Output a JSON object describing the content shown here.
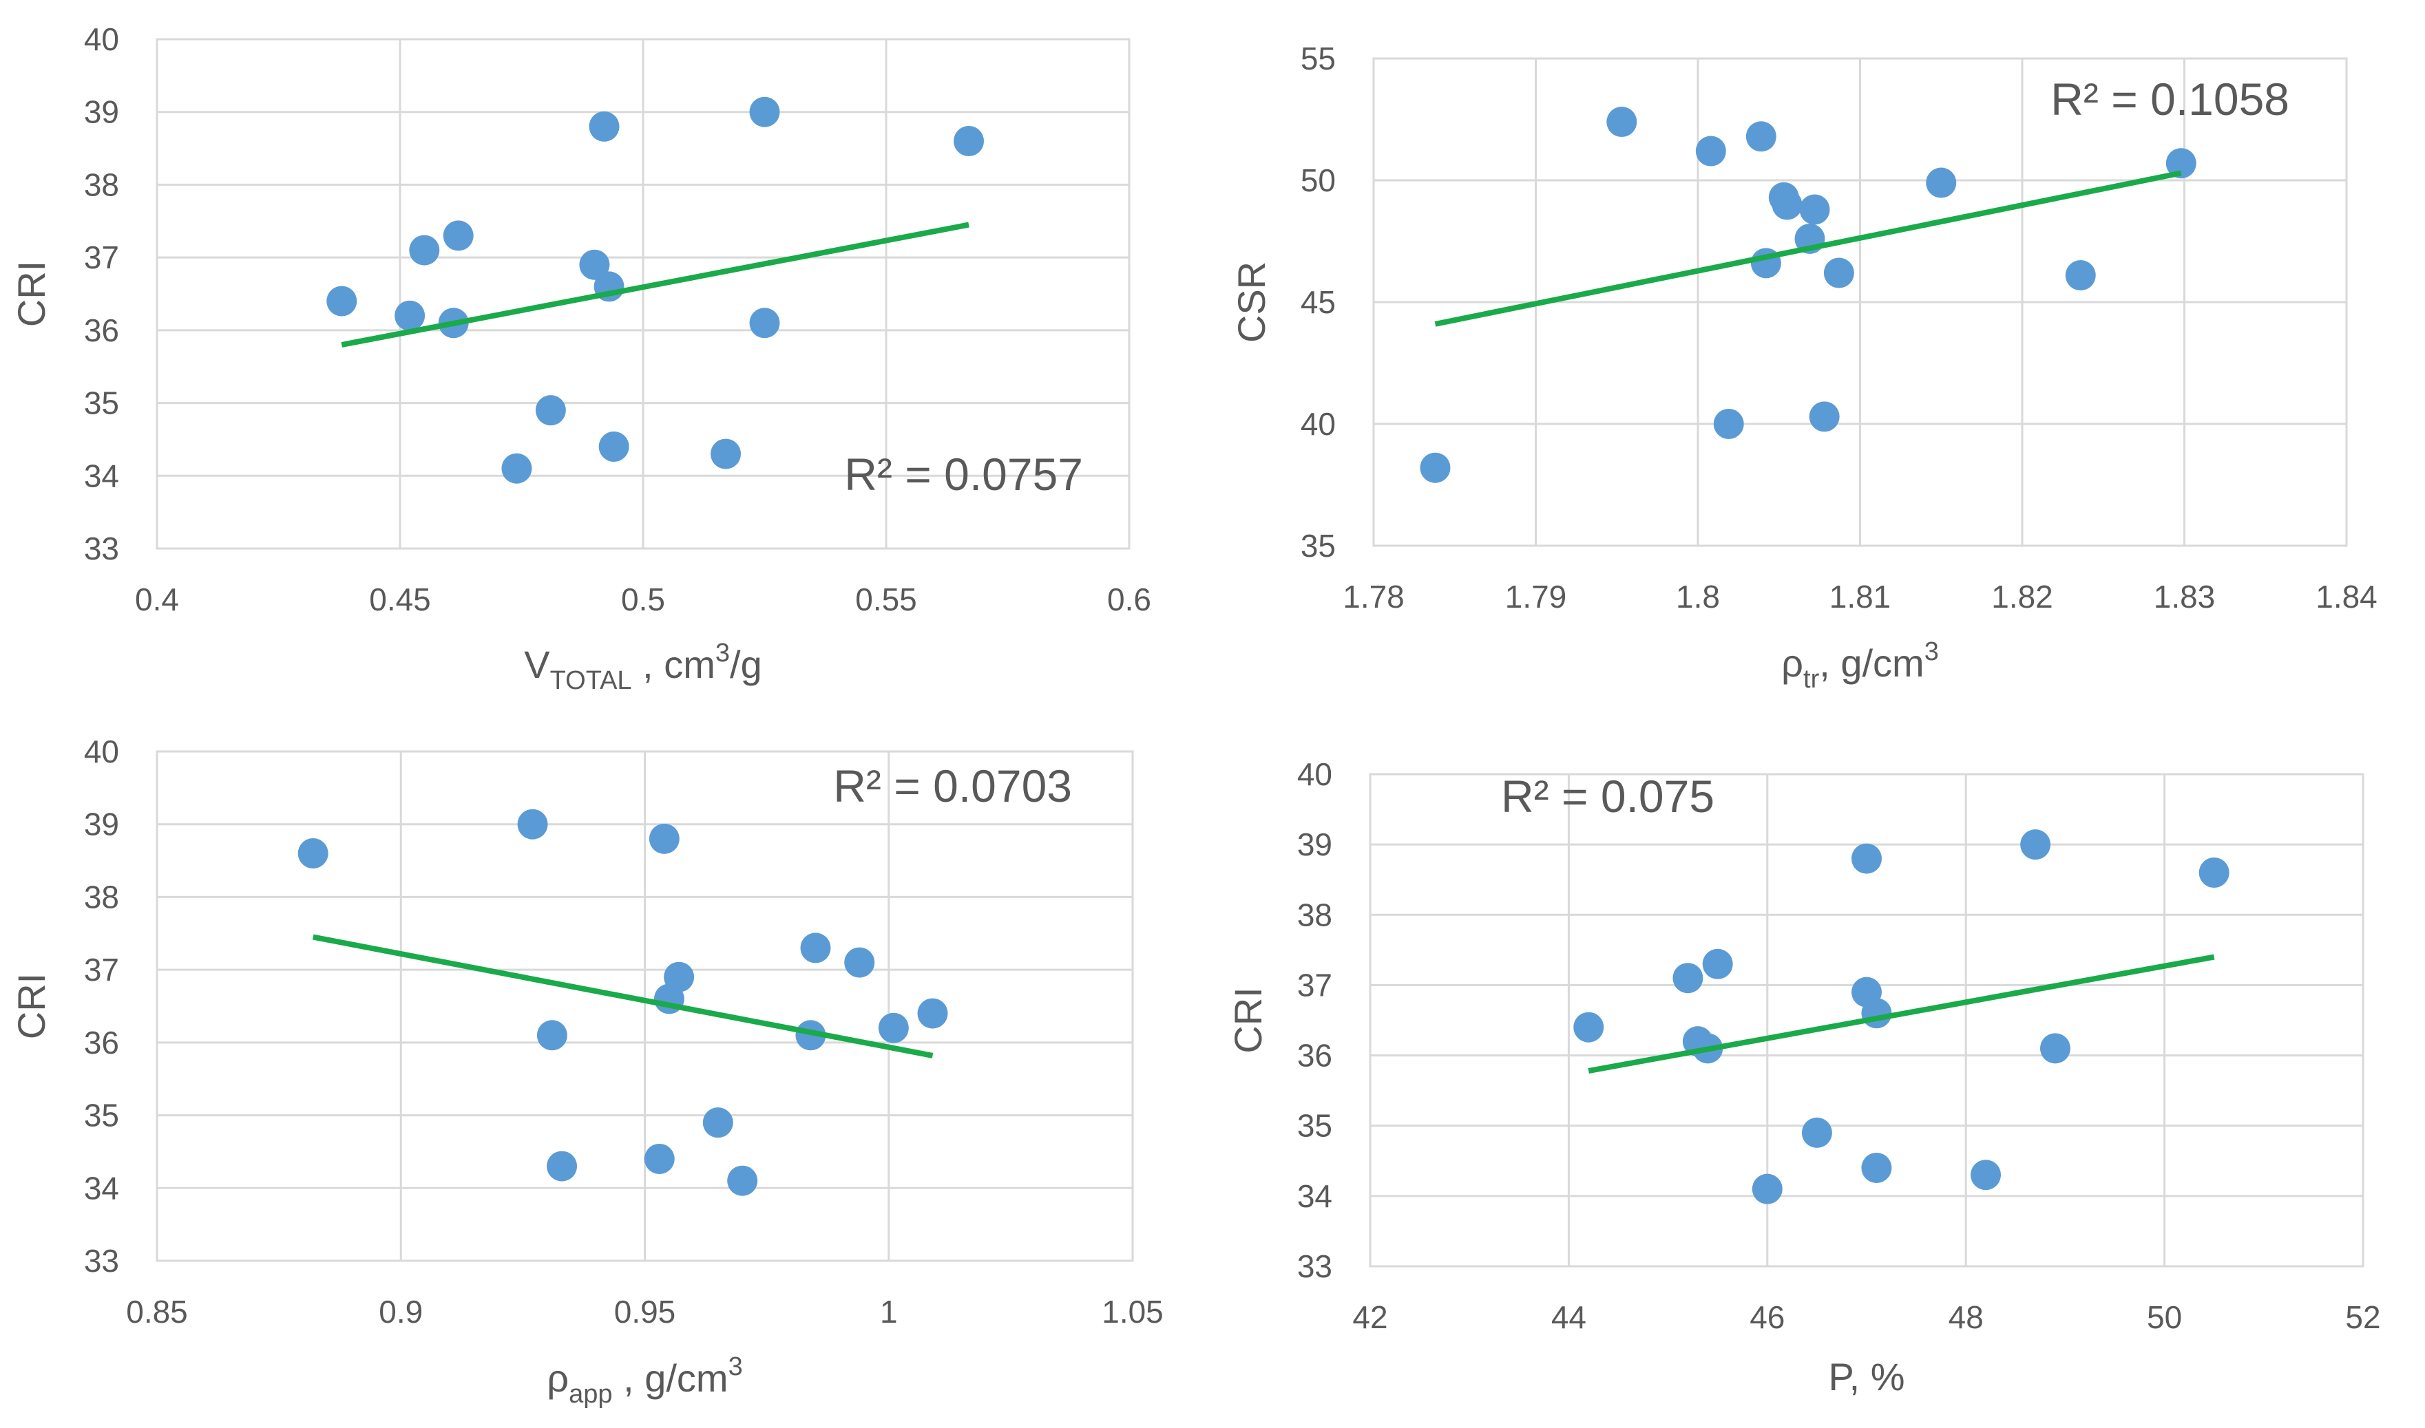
{
  "colors": {
    "point": "#5b9bd5",
    "trendline": "#1aaa4a",
    "grid": "#d9d9d9",
    "text": "#595959"
  },
  "chart_data": [
    {
      "id": "a",
      "type": "scatter",
      "title": "",
      "xlabel": {
        "main": "V",
        "sub": "TOTAL",
        "rest": " , cm",
        "sup": "3",
        "tail": "/g"
      },
      "ylabel": "CRI",
      "xlim": [
        0.4,
        0.6
      ],
      "ylim": [
        33,
        40
      ],
      "xticks": [
        0.4,
        0.45,
        0.5,
        0.55,
        0.6
      ],
      "xtick_labels": [
        "0.4",
        "0.45",
        "0.5",
        "0.55",
        "0.6"
      ],
      "yticks": [
        33,
        34,
        35,
        36,
        37,
        38,
        39,
        40
      ],
      "ytick_labels": [
        "33",
        "34",
        "35",
        "36",
        "37",
        "38",
        "39",
        "40"
      ],
      "grid": true,
      "r2_label": "R² = 0.0757",
      "r2_position": "bottom-right",
      "points": [
        {
          "x": 0.438,
          "y": 36.4
        },
        {
          "x": 0.452,
          "y": 36.2
        },
        {
          "x": 0.455,
          "y": 37.1
        },
        {
          "x": 0.461,
          "y": 36.1
        },
        {
          "x": 0.462,
          "y": 37.3
        },
        {
          "x": 0.474,
          "y": 34.1
        },
        {
          "x": 0.481,
          "y": 34.9
        },
        {
          "x": 0.49,
          "y": 36.9
        },
        {
          "x": 0.492,
          "y": 38.8
        },
        {
          "x": 0.493,
          "y": 36.6
        },
        {
          "x": 0.494,
          "y": 34.4
        },
        {
          "x": 0.517,
          "y": 34.3
        },
        {
          "x": 0.525,
          "y": 36.1
        },
        {
          "x": 0.525,
          "y": 39.0
        },
        {
          "x": 0.567,
          "y": 38.6
        }
      ],
      "trendline": {
        "x0": 0.438,
        "y0": 35.8,
        "x1": 0.567,
        "y1": 37.45
      }
    },
    {
      "id": "b",
      "type": "scatter",
      "title": "",
      "xlabel": {
        "main": "ρ",
        "sub": "tr",
        "rest": ", g/cm",
        "sup": "3",
        "tail": ""
      },
      "ylabel": "CSR",
      "xlim": [
        1.78,
        1.84
      ],
      "ylim": [
        35,
        55
      ],
      "xticks": [
        1.78,
        1.79,
        1.8,
        1.81,
        1.82,
        1.83,
        1.84
      ],
      "xtick_labels": [
        "1.78",
        "1.79",
        "1.8",
        "1.81",
        "1.82",
        "1.83",
        "1.84"
      ],
      "yticks": [
        35,
        40,
        45,
        50,
        55
      ],
      "ytick_labels": [
        "35",
        "40",
        "45",
        "50",
        "55"
      ],
      "grid": true,
      "r2_label": "R² = 0.1058",
      "r2_position": "top-right",
      "points": [
        {
          "x": 1.7838,
          "y": 38.2
        },
        {
          "x": 1.7953,
          "y": 52.4
        },
        {
          "x": 1.8008,
          "y": 51.2
        },
        {
          "x": 1.8019,
          "y": 40.0
        },
        {
          "x": 1.8039,
          "y": 51.8
        },
        {
          "x": 1.8042,
          "y": 46.6
        },
        {
          "x": 1.8053,
          "y": 49.3
        },
        {
          "x": 1.8055,
          "y": 49.0
        },
        {
          "x": 1.8069,
          "y": 47.6
        },
        {
          "x": 1.8072,
          "y": 48.8
        },
        {
          "x": 1.8078,
          "y": 40.3
        },
        {
          "x": 1.8087,
          "y": 46.2
        },
        {
          "x": 1.815,
          "y": 49.9
        },
        {
          "x": 1.8236,
          "y": 46.1
        },
        {
          "x": 1.8298,
          "y": 50.7
        }
      ],
      "trendline": {
        "x0": 1.7838,
        "y0": 44.1,
        "x1": 1.8298,
        "y1": 50.3
      }
    },
    {
      "id": "c",
      "type": "scatter",
      "title": "",
      "xlabel": {
        "main": "ρ",
        "sub": "app",
        "rest": " , g/cm",
        "sup": "3",
        "tail": ""
      },
      "ylabel": "CRI",
      "xlim": [
        0.85,
        1.05
      ],
      "ylim": [
        33,
        40
      ],
      "xticks": [
        0.85,
        0.9,
        0.95,
        1.0,
        1.05
      ],
      "xtick_labels": [
        "0.85",
        "0.9",
        "0.95",
        "1",
        "1.05"
      ],
      "yticks": [
        33,
        34,
        35,
        36,
        37,
        38,
        39,
        40
      ],
      "ytick_labels": [
        "33",
        "34",
        "35",
        "36",
        "37",
        "38",
        "39",
        "40"
      ],
      "grid": true,
      "r2_label": "R² = 0.0703",
      "r2_position": "top-right",
      "points": [
        {
          "x": 0.882,
          "y": 38.6
        },
        {
          "x": 0.927,
          "y": 39.0
        },
        {
          "x": 0.931,
          "y": 36.1
        },
        {
          "x": 0.933,
          "y": 34.3
        },
        {
          "x": 0.953,
          "y": 34.4
        },
        {
          "x": 0.954,
          "y": 38.8
        },
        {
          "x": 0.955,
          "y": 36.6
        },
        {
          "x": 0.957,
          "y": 36.9
        },
        {
          "x": 0.965,
          "y": 34.9
        },
        {
          "x": 0.97,
          "y": 34.1
        },
        {
          "x": 0.984,
          "y": 36.1
        },
        {
          "x": 0.985,
          "y": 37.3
        },
        {
          "x": 0.994,
          "y": 37.1
        },
        {
          "x": 1.001,
          "y": 36.2
        },
        {
          "x": 1.009,
          "y": 36.4
        }
      ],
      "trendline": {
        "x0": 0.882,
        "y0": 37.45,
        "x1": 1.009,
        "y1": 35.82
      }
    },
    {
      "id": "d",
      "type": "scatter",
      "title": "",
      "xlabel": {
        "main": "P, %",
        "sub": "",
        "rest": "",
        "sup": "",
        "tail": ""
      },
      "ylabel": "CRI",
      "xlim": [
        42,
        52
      ],
      "ylim": [
        33,
        40
      ],
      "xticks": [
        42,
        44,
        46,
        48,
        50,
        52
      ],
      "xtick_labels": [
        "42",
        "44",
        "46",
        "48",
        "50",
        "52"
      ],
      "yticks": [
        33,
        34,
        35,
        36,
        37,
        38,
        39,
        40
      ],
      "ytick_labels": [
        "33",
        "34",
        "35",
        "36",
        "37",
        "38",
        "39",
        "40"
      ],
      "grid": true,
      "r2_label": "R² = 0.075",
      "r2_position": "top-left",
      "points": [
        {
          "x": 44.2,
          "y": 36.4
        },
        {
          "x": 45.2,
          "y": 37.1
        },
        {
          "x": 45.3,
          "y": 36.2
        },
        {
          "x": 45.4,
          "y": 36.1
        },
        {
          "x": 45.5,
          "y": 37.3
        },
        {
          "x": 46.0,
          "y": 34.1
        },
        {
          "x": 46.5,
          "y": 34.9
        },
        {
          "x": 47.0,
          "y": 38.8
        },
        {
          "x": 47.0,
          "y": 36.9
        },
        {
          "x": 47.1,
          "y": 36.6
        },
        {
          "x": 47.1,
          "y": 34.4
        },
        {
          "x": 48.2,
          "y": 34.3
        },
        {
          "x": 48.7,
          "y": 39.0
        },
        {
          "x": 48.9,
          "y": 36.1
        },
        {
          "x": 50.5,
          "y": 38.6
        }
      ],
      "trendline": {
        "x0": 44.2,
        "y0": 35.78,
        "x1": 50.5,
        "y1": 37.4
      }
    }
  ]
}
